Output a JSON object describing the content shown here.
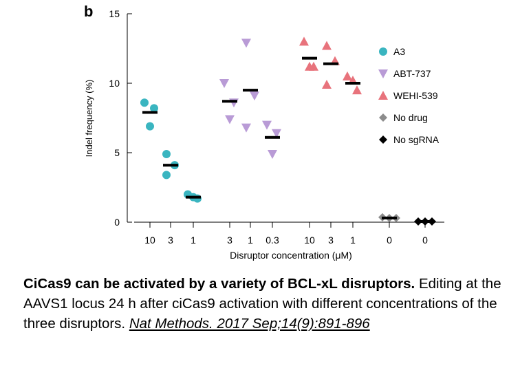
{
  "panel_label": "b",
  "colors": {
    "A3": "#3ab5c0",
    "ABT-737": "#b99bd6",
    "WEHI-539": "#e8737c",
    "No drug": "#8c8c8c",
    "No sgRNA": "#000000"
  },
  "chart_data": {
    "type": "scatter",
    "title": "",
    "xlabel": "Disruptor concentration (μM)",
    "ylabel": "Indel frequency (%)",
    "ylim": [
      0,
      15
    ],
    "yticks": [
      0,
      5,
      10,
      15
    ],
    "grid": false,
    "legend_position": "right",
    "groups": [
      {
        "series": "A3",
        "label": "10",
        "marker": "circle",
        "points": [
          8.6,
          8.2,
          6.9
        ],
        "mean": 7.9
      },
      {
        "series": "A3",
        "label": "3",
        "marker": "circle",
        "points": [
          4.9,
          4.1,
          3.4
        ],
        "mean": 4.1
      },
      {
        "series": "A3",
        "label": "1",
        "marker": "circle",
        "points": [
          2.0,
          1.7,
          1.8
        ],
        "mean": 1.8
      },
      {
        "series": "ABT-737",
        "label": "3",
        "marker": "triangle-down",
        "points": [
          10.0,
          8.6,
          7.4
        ],
        "mean": 8.7
      },
      {
        "series": "ABT-737",
        "label": "1",
        "marker": "triangle-down",
        "points": [
          12.9,
          9.1,
          6.8
        ],
        "mean": 9.5
      },
      {
        "series": "ABT-737",
        "label": "0.3",
        "marker": "triangle-down",
        "points": [
          7.0,
          6.4,
          4.9
        ],
        "mean": 6.1
      },
      {
        "series": "WEHI-539",
        "label": "10",
        "marker": "triangle-up",
        "points": [
          13.0,
          11.2,
          11.2
        ],
        "mean": 11.8
      },
      {
        "series": "WEHI-539",
        "label": "3",
        "marker": "triangle-up",
        "points": [
          12.7,
          11.6,
          9.9
        ],
        "mean": 11.4
      },
      {
        "series": "WEHI-539",
        "label": "1",
        "marker": "triangle-up",
        "points": [
          10.5,
          9.5,
          10.2
        ],
        "mean": 10.0
      },
      {
        "series": "No drug",
        "label": "0",
        "marker": "diamond",
        "points": [
          0.35,
          0.3,
          0.3
        ],
        "mean": 0.3
      },
      {
        "series": "No sgRNA",
        "label": "0",
        "marker": "diamond",
        "points": [
          0.05,
          0.05,
          0.05
        ],
        "mean": 0.05
      }
    ],
    "legend": [
      {
        "name": "A3",
        "marker": "circle"
      },
      {
        "name": "ABT-737",
        "marker": "triangle-down"
      },
      {
        "name": "WEHI-539",
        "marker": "triangle-up"
      },
      {
        "name": "No drug",
        "marker": "diamond"
      },
      {
        "name": "No sgRNA",
        "marker": "diamond"
      }
    ]
  },
  "caption": {
    "title": "CiCas9 can be activated by a variety of BCL-xL disruptors.",
    "body": " Editing at the AAVS1 locus 24 h after ciCas9 activation with different concentrations of the three disruptors. ",
    "link": "Nat Methods. 2017 Sep;14(9):891-896"
  }
}
